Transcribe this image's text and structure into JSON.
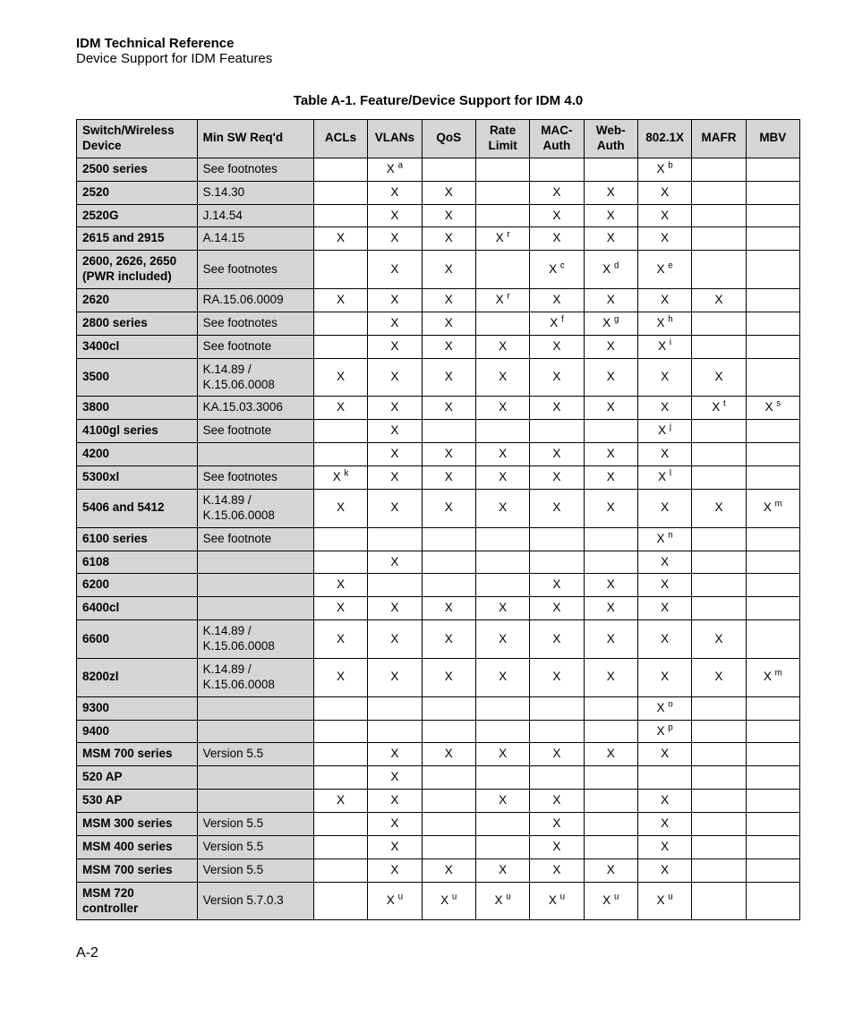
{
  "header": {
    "title": "IDM Technical Reference",
    "subtitle": "Device Support for IDM Features"
  },
  "caption": "Table A-1.   Feature/Device Support for IDM 4.0",
  "columns": [
    "Switch/Wireless Device",
    "Min SW Req'd",
    "ACLs",
    "VLANs",
    "QoS",
    "Rate Limit",
    "MAC-Auth",
    "Web-Auth",
    "802.1X",
    "MAFR",
    "MBV"
  ],
  "rows": [
    {
      "dev": "2500 series",
      "sw": "See footnotes",
      "cells": [
        "",
        {
          "x": true,
          "s": "a"
        },
        "",
        "",
        "",
        "",
        {
          "x": true,
          "s": "b"
        },
        "",
        ""
      ]
    },
    {
      "dev": "2520",
      "sw": "S.14.30",
      "cells": [
        "",
        {
          "x": true
        },
        {
          "x": true
        },
        "",
        {
          "x": true
        },
        {
          "x": true
        },
        {
          "x": true
        },
        "",
        ""
      ]
    },
    {
      "dev": "2520G",
      "sw": "J.14.54",
      "cells": [
        "",
        {
          "x": true
        },
        {
          "x": true
        },
        "",
        {
          "x": true
        },
        {
          "x": true
        },
        {
          "x": true
        },
        "",
        ""
      ]
    },
    {
      "dev": "2615 and 2915",
      "sw": "A.14.15",
      "cells": [
        {
          "x": true
        },
        {
          "x": true
        },
        {
          "x": true
        },
        {
          "x": true,
          "s": "r"
        },
        {
          "x": true
        },
        {
          "x": true
        },
        {
          "x": true
        },
        "",
        ""
      ]
    },
    {
      "dev": "2600, 2626, 2650 (PWR included)",
      "sw": "See footnotes",
      "cells": [
        "",
        {
          "x": true
        },
        {
          "x": true
        },
        "",
        {
          "x": true,
          "s": "c"
        },
        {
          "x": true,
          "s": "d"
        },
        {
          "x": true,
          "s": "e"
        },
        "",
        ""
      ]
    },
    {
      "dev": "2620",
      "sw": "RA.15.06.0009",
      "cells": [
        {
          "x": true
        },
        {
          "x": true
        },
        {
          "x": true
        },
        {
          "x": true,
          "s": "r"
        },
        {
          "x": true
        },
        {
          "x": true
        },
        {
          "x": true
        },
        {
          "x": true
        },
        ""
      ]
    },
    {
      "dev": "2800 series",
      "sw": "See footnotes",
      "cells": [
        "",
        {
          "x": true
        },
        {
          "x": true
        },
        "",
        {
          "x": true,
          "s": "f"
        },
        {
          "x": true,
          "s": "g"
        },
        {
          "x": true,
          "s": "h"
        },
        "",
        ""
      ]
    },
    {
      "dev": "3400cl",
      "sw": "See footnote",
      "cells": [
        "",
        {
          "x": true
        },
        {
          "x": true
        },
        {
          "x": true
        },
        {
          "x": true
        },
        {
          "x": true
        },
        {
          "x": true,
          "s": "i"
        },
        "",
        ""
      ]
    },
    {
      "dev": "3500",
      "sw": "K.14.89 / K.15.06.0008",
      "cells": [
        {
          "x": true
        },
        {
          "x": true
        },
        {
          "x": true
        },
        {
          "x": true
        },
        {
          "x": true
        },
        {
          "x": true
        },
        {
          "x": true
        },
        {
          "x": true
        },
        ""
      ]
    },
    {
      "dev": "3800",
      "sw": "KA.15.03.3006",
      "cells": [
        {
          "x": true
        },
        {
          "x": true
        },
        {
          "x": true
        },
        {
          "x": true
        },
        {
          "x": true
        },
        {
          "x": true
        },
        {
          "x": true
        },
        {
          "x": true,
          "s": "t"
        },
        {
          "x": true,
          "s": "s"
        }
      ]
    },
    {
      "dev": "4100gl series",
      "sw": "See footnote",
      "cells": [
        "",
        {
          "x": true
        },
        "",
        "",
        "",
        "",
        {
          "x": true,
          "s": "j"
        },
        "",
        ""
      ]
    },
    {
      "dev": "4200",
      "sw": "",
      "cells": [
        "",
        {
          "x": true
        },
        {
          "x": true
        },
        {
          "x": true
        },
        {
          "x": true
        },
        {
          "x": true
        },
        {
          "x": true
        },
        "",
        ""
      ]
    },
    {
      "dev": "5300xl",
      "sw": "See footnotes",
      "cells": [
        {
          "x": true,
          "s": "k"
        },
        {
          "x": true
        },
        {
          "x": true
        },
        {
          "x": true
        },
        {
          "x": true
        },
        {
          "x": true
        },
        {
          "x": true,
          "s": "l"
        },
        "",
        ""
      ]
    },
    {
      "dev": "5406 and 5412",
      "sw": "K.14.89 / K.15.06.0008",
      "cells": [
        {
          "x": true
        },
        {
          "x": true
        },
        {
          "x": true
        },
        {
          "x": true
        },
        {
          "x": true
        },
        {
          "x": true
        },
        {
          "x": true
        },
        {
          "x": true
        },
        {
          "x": true,
          "s": "m"
        }
      ]
    },
    {
      "dev": "6100 series",
      "sw": "See footnote",
      "cells": [
        "",
        "",
        "",
        "",
        "",
        "",
        {
          "x": true,
          "s": "n"
        },
        "",
        ""
      ]
    },
    {
      "dev": "6108",
      "sw": "",
      "cells": [
        "",
        {
          "x": true
        },
        "",
        "",
        "",
        "",
        {
          "x": true
        },
        "",
        ""
      ]
    },
    {
      "dev": "6200",
      "sw": "",
      "cells": [
        {
          "x": true
        },
        "",
        "",
        "",
        {
          "x": true
        },
        {
          "x": true
        },
        {
          "x": true
        },
        "",
        ""
      ]
    },
    {
      "dev": "6400cl",
      "sw": "",
      "cells": [
        {
          "x": true
        },
        {
          "x": true
        },
        {
          "x": true
        },
        {
          "x": true
        },
        {
          "x": true
        },
        {
          "x": true
        },
        {
          "x": true
        },
        "",
        ""
      ]
    },
    {
      "dev": "6600",
      "sw": "K.14.89 / K.15.06.0008",
      "cells": [
        {
          "x": true
        },
        {
          "x": true
        },
        {
          "x": true
        },
        {
          "x": true
        },
        {
          "x": true
        },
        {
          "x": true
        },
        {
          "x": true
        },
        {
          "x": true
        },
        ""
      ]
    },
    {
      "dev": "8200zl",
      "sw": "K.14.89 / K.15.06.0008",
      "cells": [
        {
          "x": true
        },
        {
          "x": true
        },
        {
          "x": true
        },
        {
          "x": true
        },
        {
          "x": true
        },
        {
          "x": true
        },
        {
          "x": true
        },
        {
          "x": true
        },
        {
          "x": true,
          "s": "m"
        }
      ]
    },
    {
      "dev": "9300",
      "sw": "",
      "cells": [
        "",
        "",
        "",
        "",
        "",
        "",
        {
          "x": true,
          "s": "o"
        },
        "",
        ""
      ]
    },
    {
      "dev": "9400",
      "sw": "",
      "cells": [
        "",
        "",
        "",
        "",
        "",
        "",
        {
          "x": true,
          "s": "p"
        },
        "",
        ""
      ]
    },
    {
      "dev": "MSM 700 series",
      "sw": "Version 5.5",
      "cells": [
        "",
        {
          "x": true
        },
        {
          "x": true
        },
        {
          "x": true
        },
        {
          "x": true
        },
        {
          "x": true
        },
        {
          "x": true
        },
        "",
        ""
      ]
    },
    {
      "dev": "520 AP",
      "sw": "",
      "cells": [
        "",
        {
          "x": true
        },
        "",
        "",
        "",
        "",
        "",
        "",
        ""
      ]
    },
    {
      "dev": "530 AP",
      "sw": "",
      "cells": [
        {
          "x": true
        },
        {
          "x": true
        },
        "",
        {
          "x": true
        },
        {
          "x": true
        },
        "",
        {
          "x": true
        },
        "",
        ""
      ]
    },
    {
      "dev": "MSM 300 series",
      "sw": "Version 5.5",
      "cells": [
        "",
        {
          "x": true
        },
        "",
        "",
        {
          "x": true
        },
        "",
        {
          "x": true
        },
        "",
        ""
      ]
    },
    {
      "dev": "MSM 400 series",
      "sw": "Version 5.5",
      "cells": [
        "",
        {
          "x": true
        },
        "",
        "",
        {
          "x": true
        },
        "",
        {
          "x": true
        },
        "",
        ""
      ]
    },
    {
      "dev": "MSM 700 series",
      "sw": "Version 5.5",
      "cells": [
        "",
        {
          "x": true
        },
        {
          "x": true
        },
        {
          "x": true
        },
        {
          "x": true
        },
        {
          "x": true
        },
        {
          "x": true
        },
        "",
        ""
      ]
    },
    {
      "dev": "MSM 720 controller",
      "sw": "Version 5.7.0.3",
      "cells": [
        "",
        {
          "x": true,
          "s": "u"
        },
        {
          "x": true,
          "s": "u"
        },
        {
          "x": true,
          "s": "u"
        },
        {
          "x": true,
          "s": "u"
        },
        {
          "x": true,
          "s": "u"
        },
        {
          "x": true,
          "s": "u"
        },
        "",
        ""
      ]
    }
  ],
  "pageNumber": "A-2",
  "style": {
    "headerBg": "#d5d5d5",
    "border": "#000000",
    "text": "#000000",
    "background": "#ffffff",
    "fontSizeBody": 14,
    "fontSizeCell": 13.5
  }
}
